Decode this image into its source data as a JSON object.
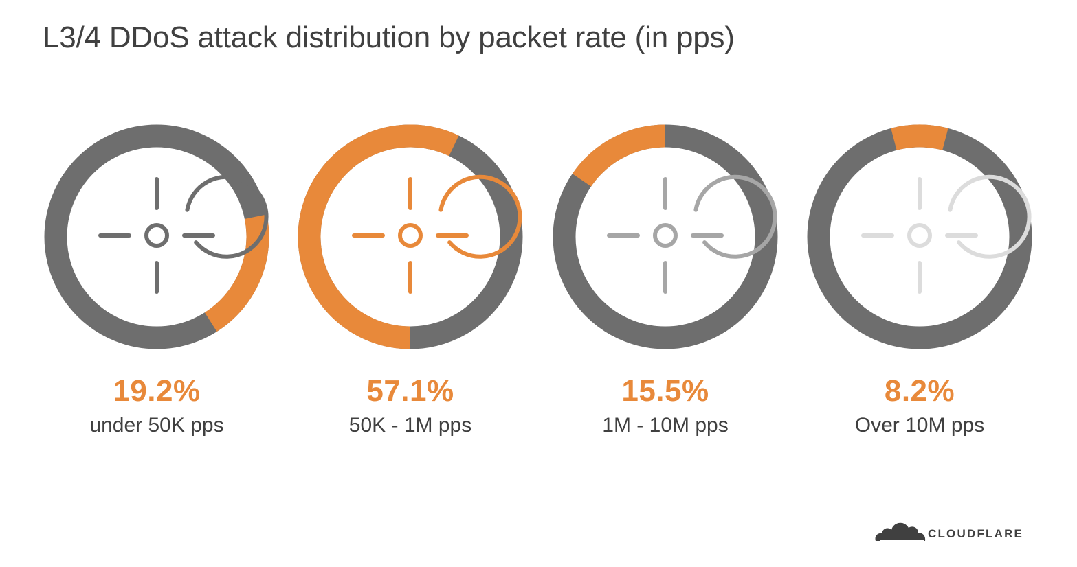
{
  "title": "L3/4 DDoS attack distribution by packet rate (in pps)",
  "colors": {
    "accent": "#E8893A",
    "ring_track": "#6E6E6E",
    "text": "#404040"
  },
  "icon": "crosshair-target-icon",
  "chart_data": {
    "type": "donut",
    "title": "L3/4 DDoS attack distribution by packet rate (in pps)",
    "segments": [
      {
        "percent_label": "19.2%",
        "value": 19.2,
        "label": "under 50K pps",
        "icon_color": "#6E6E6E"
      },
      {
        "percent_label": "57.1%",
        "value": 57.1,
        "label": "50K - 1M pps",
        "icon_color": "#E8893A"
      },
      {
        "percent_label": "15.5%",
        "value": 15.5,
        "label": "1M - 10M pps",
        "icon_color": "#A6A6A6"
      },
      {
        "percent_label": "8.2%",
        "value": 8.2,
        "label": "Over 10M pps",
        "icon_color": "#DCDCDC"
      }
    ]
  },
  "brand": {
    "name": "CLOUDFLARE"
  }
}
